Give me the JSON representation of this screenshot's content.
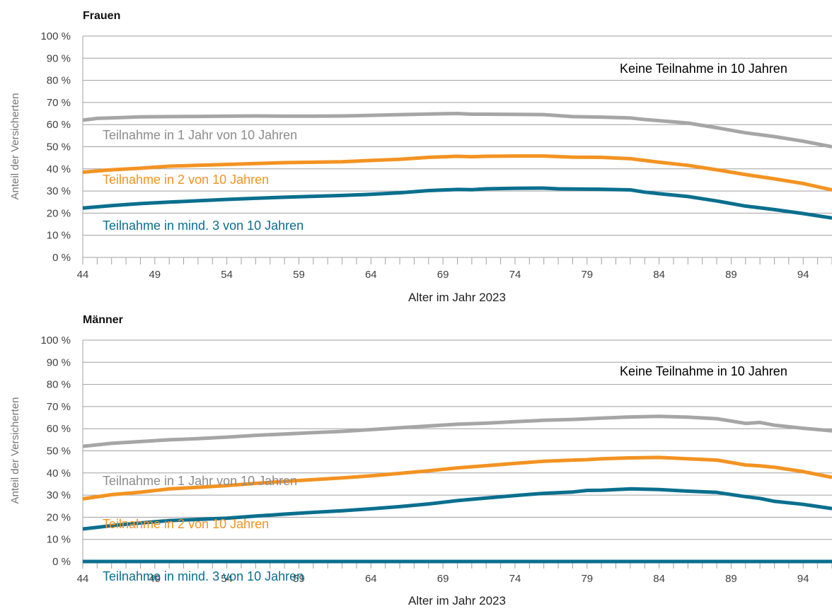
{
  "chart_data": [
    {
      "type": "line",
      "title": "Frauen",
      "xlabel": "Alter im Jahr 2023",
      "ylabel": "Anteil der Versicherten",
      "xlim": [
        44,
        96
      ],
      "ylim": [
        0,
        100
      ],
      "x_tick_labels": [
        "44",
        "49",
        "54",
        "59",
        "64",
        "69",
        "74",
        "79",
        "84",
        "89",
        "94"
      ],
      "y_tick_labels": [
        "0 %",
        "10 %",
        "20 %",
        "30 %",
        "40 %",
        "50 %",
        "60 %",
        "70 %",
        "80 %",
        "90 %",
        "100 %"
      ],
      "grid": true,
      "annotations": [
        {
          "text": "Keine Teilnahme in 10 Jahren",
          "color": "#000000"
        },
        {
          "text": "Teilnahme in 1 Jahr von 10 Jahren",
          "color": "#8c8c8c"
        },
        {
          "text": "Teilnahme in 2 von 10 Jahren",
          "color": "#f39322"
        },
        {
          "text": "Teilnahme in mind. 3 von 10 Jahren",
          "color": "#0a6f8e"
        }
      ],
      "series": [
        {
          "color": "#a6a6a6",
          "x": [
            44,
            45,
            46,
            48,
            50,
            52,
            54,
            56,
            58,
            60,
            62,
            64,
            66,
            68,
            70,
            71,
            72,
            74,
            76,
            78,
            80,
            82,
            83,
            84,
            86,
            88,
            90,
            92,
            94,
            96
          ],
          "y": [
            62,
            62.8,
            63,
            63.5,
            63.6,
            63.7,
            63.8,
            63.9,
            63.8,
            63.8,
            63.9,
            64.2,
            64.5,
            64.8,
            65,
            64.7,
            64.7,
            64.6,
            64.5,
            63.6,
            63.4,
            63,
            62.3,
            61.8,
            60.7,
            58.6,
            56.3,
            54.6,
            52.5,
            50
          ]
        },
        {
          "color": "#f39322",
          "x": [
            44,
            46,
            48,
            50,
            52,
            54,
            56,
            58,
            60,
            62,
            64,
            66,
            68,
            70,
            71,
            72,
            74,
            76,
            78,
            80,
            82,
            83,
            84,
            86,
            88,
            90,
            92,
            94,
            96
          ],
          "y": [
            38.5,
            39.6,
            40.3,
            41.2,
            41.6,
            42,
            42.4,
            42.8,
            43,
            43.2,
            43.8,
            44.3,
            45.2,
            45.7,
            45.5,
            45.7,
            45.8,
            45.8,
            45.3,
            45.2,
            44.6,
            43.8,
            43,
            41.6,
            39.6,
            37.4,
            35.5,
            33.4,
            30.5
          ]
        },
        {
          "color": "#0a6f8e",
          "x": [
            44,
            46,
            48,
            50,
            52,
            54,
            56,
            58,
            60,
            62,
            64,
            66,
            68,
            70,
            71,
            72,
            74,
            76,
            77,
            78,
            80,
            82,
            83,
            84,
            86,
            88,
            90,
            92,
            94,
            96
          ],
          "y": [
            22.3,
            23.4,
            24.3,
            25,
            25.6,
            26.2,
            26.7,
            27.2,
            27.6,
            28,
            28.5,
            29.2,
            30.2,
            30.7,
            30.6,
            31,
            31.2,
            31.3,
            31,
            30.9,
            30.8,
            30.5,
            29.5,
            28.8,
            27.5,
            25.5,
            23.2,
            21.6,
            19.8,
            17.8
          ]
        }
      ]
    },
    {
      "type": "line",
      "title": "Männer",
      "xlabel": "Alter im Jahr 2023",
      "ylabel": "Anteil der Versicherten",
      "xlim": [
        44,
        96
      ],
      "ylim": [
        0,
        100
      ],
      "x_tick_labels": [
        "44",
        "49",
        "54",
        "59",
        "64",
        "69",
        "74",
        "79",
        "84",
        "89",
        "94"
      ],
      "y_tick_labels": [
        "0 %",
        "10 %",
        "20 %",
        "30 %",
        "40 %",
        "50 %",
        "60 %",
        "70 %",
        "80 %",
        "90 %",
        "100 %"
      ],
      "grid": true,
      "annotations": [
        {
          "text": "Keine Teilnahme in 10 Jahren",
          "color": "#000000"
        },
        {
          "text": "Teilnahme in 1 Jahr von 10 Jahren",
          "color": "#8c8c8c"
        },
        {
          "text": "Teilnahme in 2 von 10 Jahren",
          "color": "#f39322"
        },
        {
          "text": "Teilnahme in mind. 3 von 10 Jahren",
          "color": "#0a6f8e"
        }
      ],
      "series": [
        {
          "color": "#a6a6a6",
          "x": [
            44,
            46,
            48,
            50,
            52,
            54,
            56,
            58,
            60,
            62,
            64,
            66,
            68,
            70,
            72,
            74,
            76,
            78,
            80,
            82,
            84,
            86,
            88,
            90,
            91,
            92,
            94,
            96
          ],
          "y": [
            52,
            53.4,
            54.2,
            55,
            55.5,
            56.2,
            57,
            57.6,
            58.2,
            58.8,
            59.6,
            60.4,
            61.2,
            62,
            62.5,
            63.2,
            63.8,
            64.2,
            64.8,
            65.3,
            65.6,
            65.2,
            64.5,
            62.4,
            62.8,
            61.6,
            60.2,
            59
          ]
        },
        {
          "color": "#f39322",
          "x": [
            44,
            46,
            48,
            50,
            52,
            54,
            56,
            58,
            60,
            62,
            64,
            66,
            68,
            70,
            72,
            74,
            76,
            78,
            79,
            80,
            82,
            84,
            86,
            88,
            90,
            91,
            92,
            94,
            96
          ],
          "y": [
            28.3,
            30.2,
            31.3,
            32.8,
            33.5,
            34.3,
            35.3,
            36.2,
            37,
            37.8,
            38.7,
            39.8,
            41,
            42.3,
            43.3,
            44.3,
            45.3,
            45.8,
            46,
            46.4,
            46.8,
            47,
            46.4,
            45.8,
            43.6,
            43.2,
            42.6,
            40.6,
            38
          ]
        },
        {
          "color": "#0a6f8e",
          "x": [
            44,
            46,
            48,
            50,
            52,
            54,
            56,
            58,
            60,
            62,
            64,
            66,
            68,
            70,
            72,
            74,
            76,
            78,
            79,
            80,
            82,
            84,
            86,
            88,
            90,
            91,
            92,
            94,
            96
          ],
          "y": [
            14.7,
            16.2,
            17.4,
            18.5,
            19,
            19.6,
            20.5,
            21.4,
            22.2,
            22.9,
            23.8,
            24.8,
            26,
            27.5,
            28.7,
            29.8,
            30.8,
            31.4,
            32.1,
            32.2,
            32.8,
            32.5,
            31.8,
            31.2,
            29.3,
            28.5,
            27.2,
            25.8,
            23.9
          ]
        },
        {
          "color": "#0a6f8e",
          "x": [
            44,
            96
          ],
          "y": [
            0,
            0
          ]
        }
      ]
    }
  ]
}
